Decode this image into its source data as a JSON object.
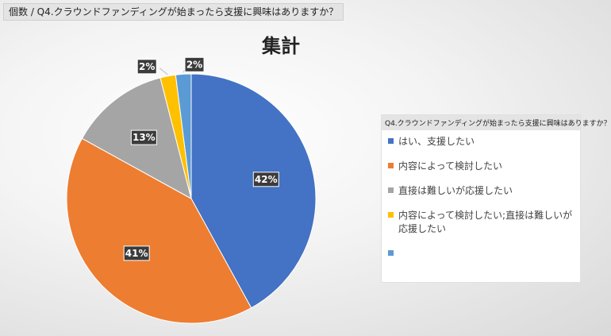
{
  "field_button": "個数 / Q4.クラウンドファンディングが始まったら支援に興味はありますか？",
  "chart_data": {
    "type": "pie",
    "title": "集計",
    "legend_title": "Q4.クラウンドファンディングが始まったら支援に興味はありますか？",
    "legend_position": "right",
    "categories": [
      "はい、支援したい",
      "内容によって検討したい",
      "直接は難しいが応援したい",
      "内容によって検討したい;直接は難しいが応援したい",
      ""
    ],
    "values": [
      42,
      41,
      13,
      2,
      2
    ],
    "labels": [
      "42%",
      "41%",
      "13%",
      "2%",
      "2%"
    ],
    "colors": [
      "#4472C4",
      "#ED7D31",
      "#A5A5A5",
      "#FFC000",
      "#5B9BD5"
    ]
  }
}
